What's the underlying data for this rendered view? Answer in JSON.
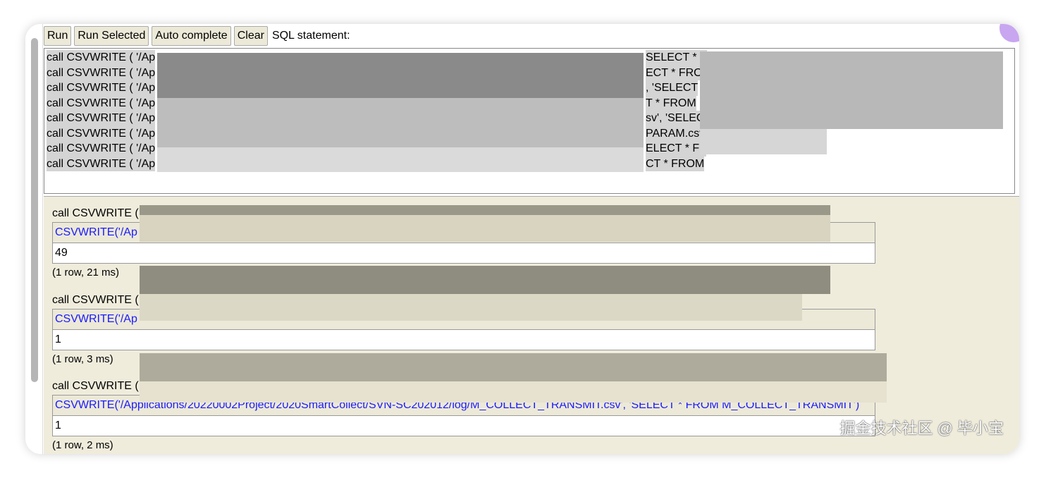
{
  "toolbar": {
    "run": "Run",
    "run_selected": "Run Selected",
    "auto_complete": "Auto complete",
    "clear": "Clear",
    "sql_label": "SQL statement:"
  },
  "editor": {
    "lines": [
      "call CSVWRITE ( '/Ap",
      "call CSVWRITE ( '/Ap",
      "call CSVWRITE ( '/Ap",
      "call CSVWRITE ( '/Ap",
      "call CSVWRITE ( '/Ap",
      "call CSVWRITE ( '/Ap",
      "call CSVWRITE ( '/Ap",
      "call CSVWRITE ( '/Ap"
    ],
    "tails": [
      "SELECT * F",
      "ECT * FRO",
      ", 'SELECT",
      "T * FROM",
      "sv', 'SELEC",
      "PARAM.csv",
      "ELECT * FF",
      "CT * FROM"
    ]
  },
  "results": [
    {
      "statement": "call CSVWRITE (",
      "column": "CSVWRITE('/Ap",
      "value": "49",
      "info": "(1 row, 21 ms)"
    },
    {
      "statement": "call CSVWRITE (",
      "column": "CSVWRITE('/Ap",
      "value": "1",
      "info": "(1 row, 3 ms)"
    },
    {
      "statement": "call CSVWRITE (",
      "column": "CSVWRITE('/Applications/20220002Project/2020SmartCollect/SVN-SC202012/log/M_COLLECT_TRANSMIT.csv', 'SELECT * FROM M_COLLECT_TRANSMIT')",
      "value": "1",
      "info": "(1 row, 2 ms)"
    }
  ],
  "watermark": "掘金技术社区 @ 毕小宝"
}
